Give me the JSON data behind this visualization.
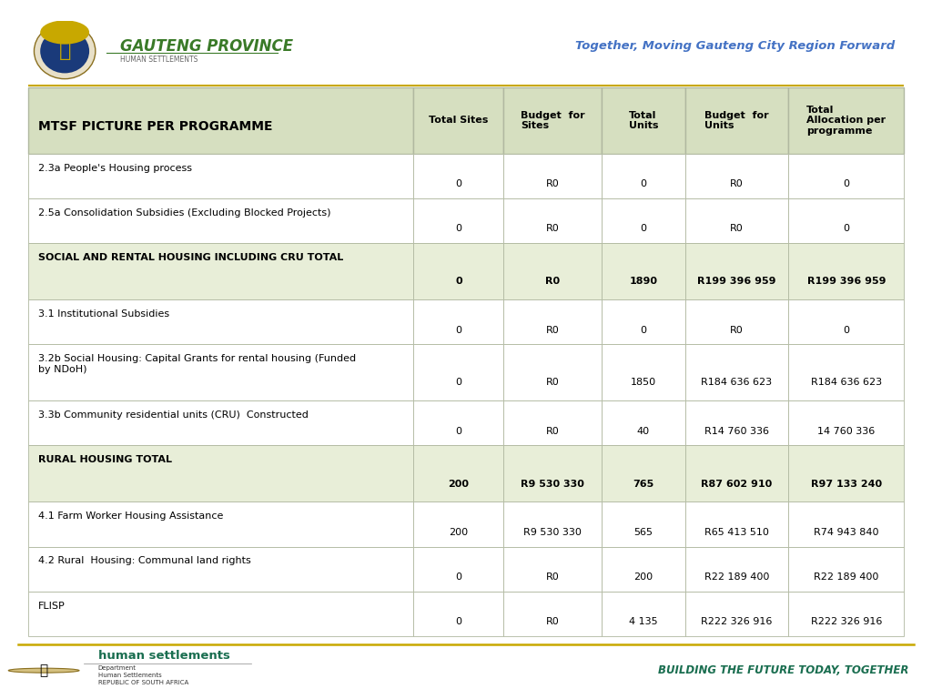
{
  "title_header": "MTSF PICTURE PER PROGRAMME",
  "col_headers": [
    "Total Sites",
    "Budget  for\nSites",
    "Total\nUnits",
    "Budget  for\nUnits",
    "Total\nAllocation per\nprogramme"
  ],
  "rows": [
    {
      "label": "2.3a People's Housing process",
      "values": [
        "0",
        "R0",
        "0",
        "R0",
        "0"
      ],
      "bold": false,
      "bg": "#ffffff",
      "label_top": true
    },
    {
      "label": "2.5a Consolidation Subsidies (Excluding Blocked Projects)",
      "values": [
        "0",
        "R0",
        "0",
        "R0",
        "0"
      ],
      "bold": false,
      "bg": "#ffffff",
      "label_top": true
    },
    {
      "label": "SOCIAL AND RENTAL HOUSING INCLUDING CRU TOTAL",
      "values": [
        "0",
        "R0",
        "1890",
        "R199 396 959",
        "R199 396 959"
      ],
      "bold": true,
      "bg": "#e8eed8",
      "label_top": true
    },
    {
      "label": "3.1 Institutional Subsidies",
      "values": [
        "0",
        "R0",
        "0",
        "R0",
        "0"
      ],
      "bold": false,
      "bg": "#ffffff",
      "label_top": true
    },
    {
      "label": "3.2b Social Housing: Capital Grants for rental housing (Funded\nby NDoH)",
      "values": [
        "0",
        "R0",
        "1850",
        "R184 636 623",
        "R184 636 623"
      ],
      "bold": false,
      "bg": "#ffffff",
      "label_top": true
    },
    {
      "label": "3.3b Community residential units (CRU)  Constructed",
      "values": [
        "0",
        "R0",
        "40",
        "R14 760 336",
        "14 760 336"
      ],
      "bold": false,
      "bg": "#ffffff",
      "label_top": true
    },
    {
      "label": "RURAL HOUSING TOTAL",
      "values": [
        "200",
        "R9 530 330",
        "765",
        "R87 602 910",
        "R97 133 240"
      ],
      "bold": true,
      "bg": "#e8eed8",
      "label_top": true
    },
    {
      "label": "4.1 Farm Worker Housing Assistance",
      "values": [
        "200",
        "R9 530 330",
        "565",
        "R65 413 510",
        "R74 943 840"
      ],
      "bold": false,
      "bg": "#ffffff",
      "label_top": true
    },
    {
      "label": "4.2 Rural  Housing: Communal land rights",
      "values": [
        "0",
        "R0",
        "200",
        "R22 189 400",
        "R22 189 400"
      ],
      "bold": false,
      "bg": "#ffffff",
      "label_top": true
    },
    {
      "label": "FLISP",
      "values": [
        "0",
        "R0",
        "4 135",
        "R222 326 916",
        "R222 326 916"
      ],
      "bold": false,
      "bg": "#ffffff",
      "label_top": true
    }
  ],
  "header_bg": "#d6dfc0",
  "gauteng_text": "GAUTENG PROVINCE",
  "gauteng_sub": "HUMAN SETTLEMENTS",
  "slogan": "Together, Moving Gauteng City Region Forward",
  "footer_left1": "human settlements",
  "footer_left2": "Department\nHuman Settlements\nREPUBLIC OF SOUTH AFRICA",
  "footer_right": "BUILDING THE FUTURE TODAY, TOGETHER",
  "gauteng_color": "#3a7a28",
  "slogan_color": "#4472c4",
  "footer_green": "#1a6e50",
  "border_color": "#b0b8a0"
}
